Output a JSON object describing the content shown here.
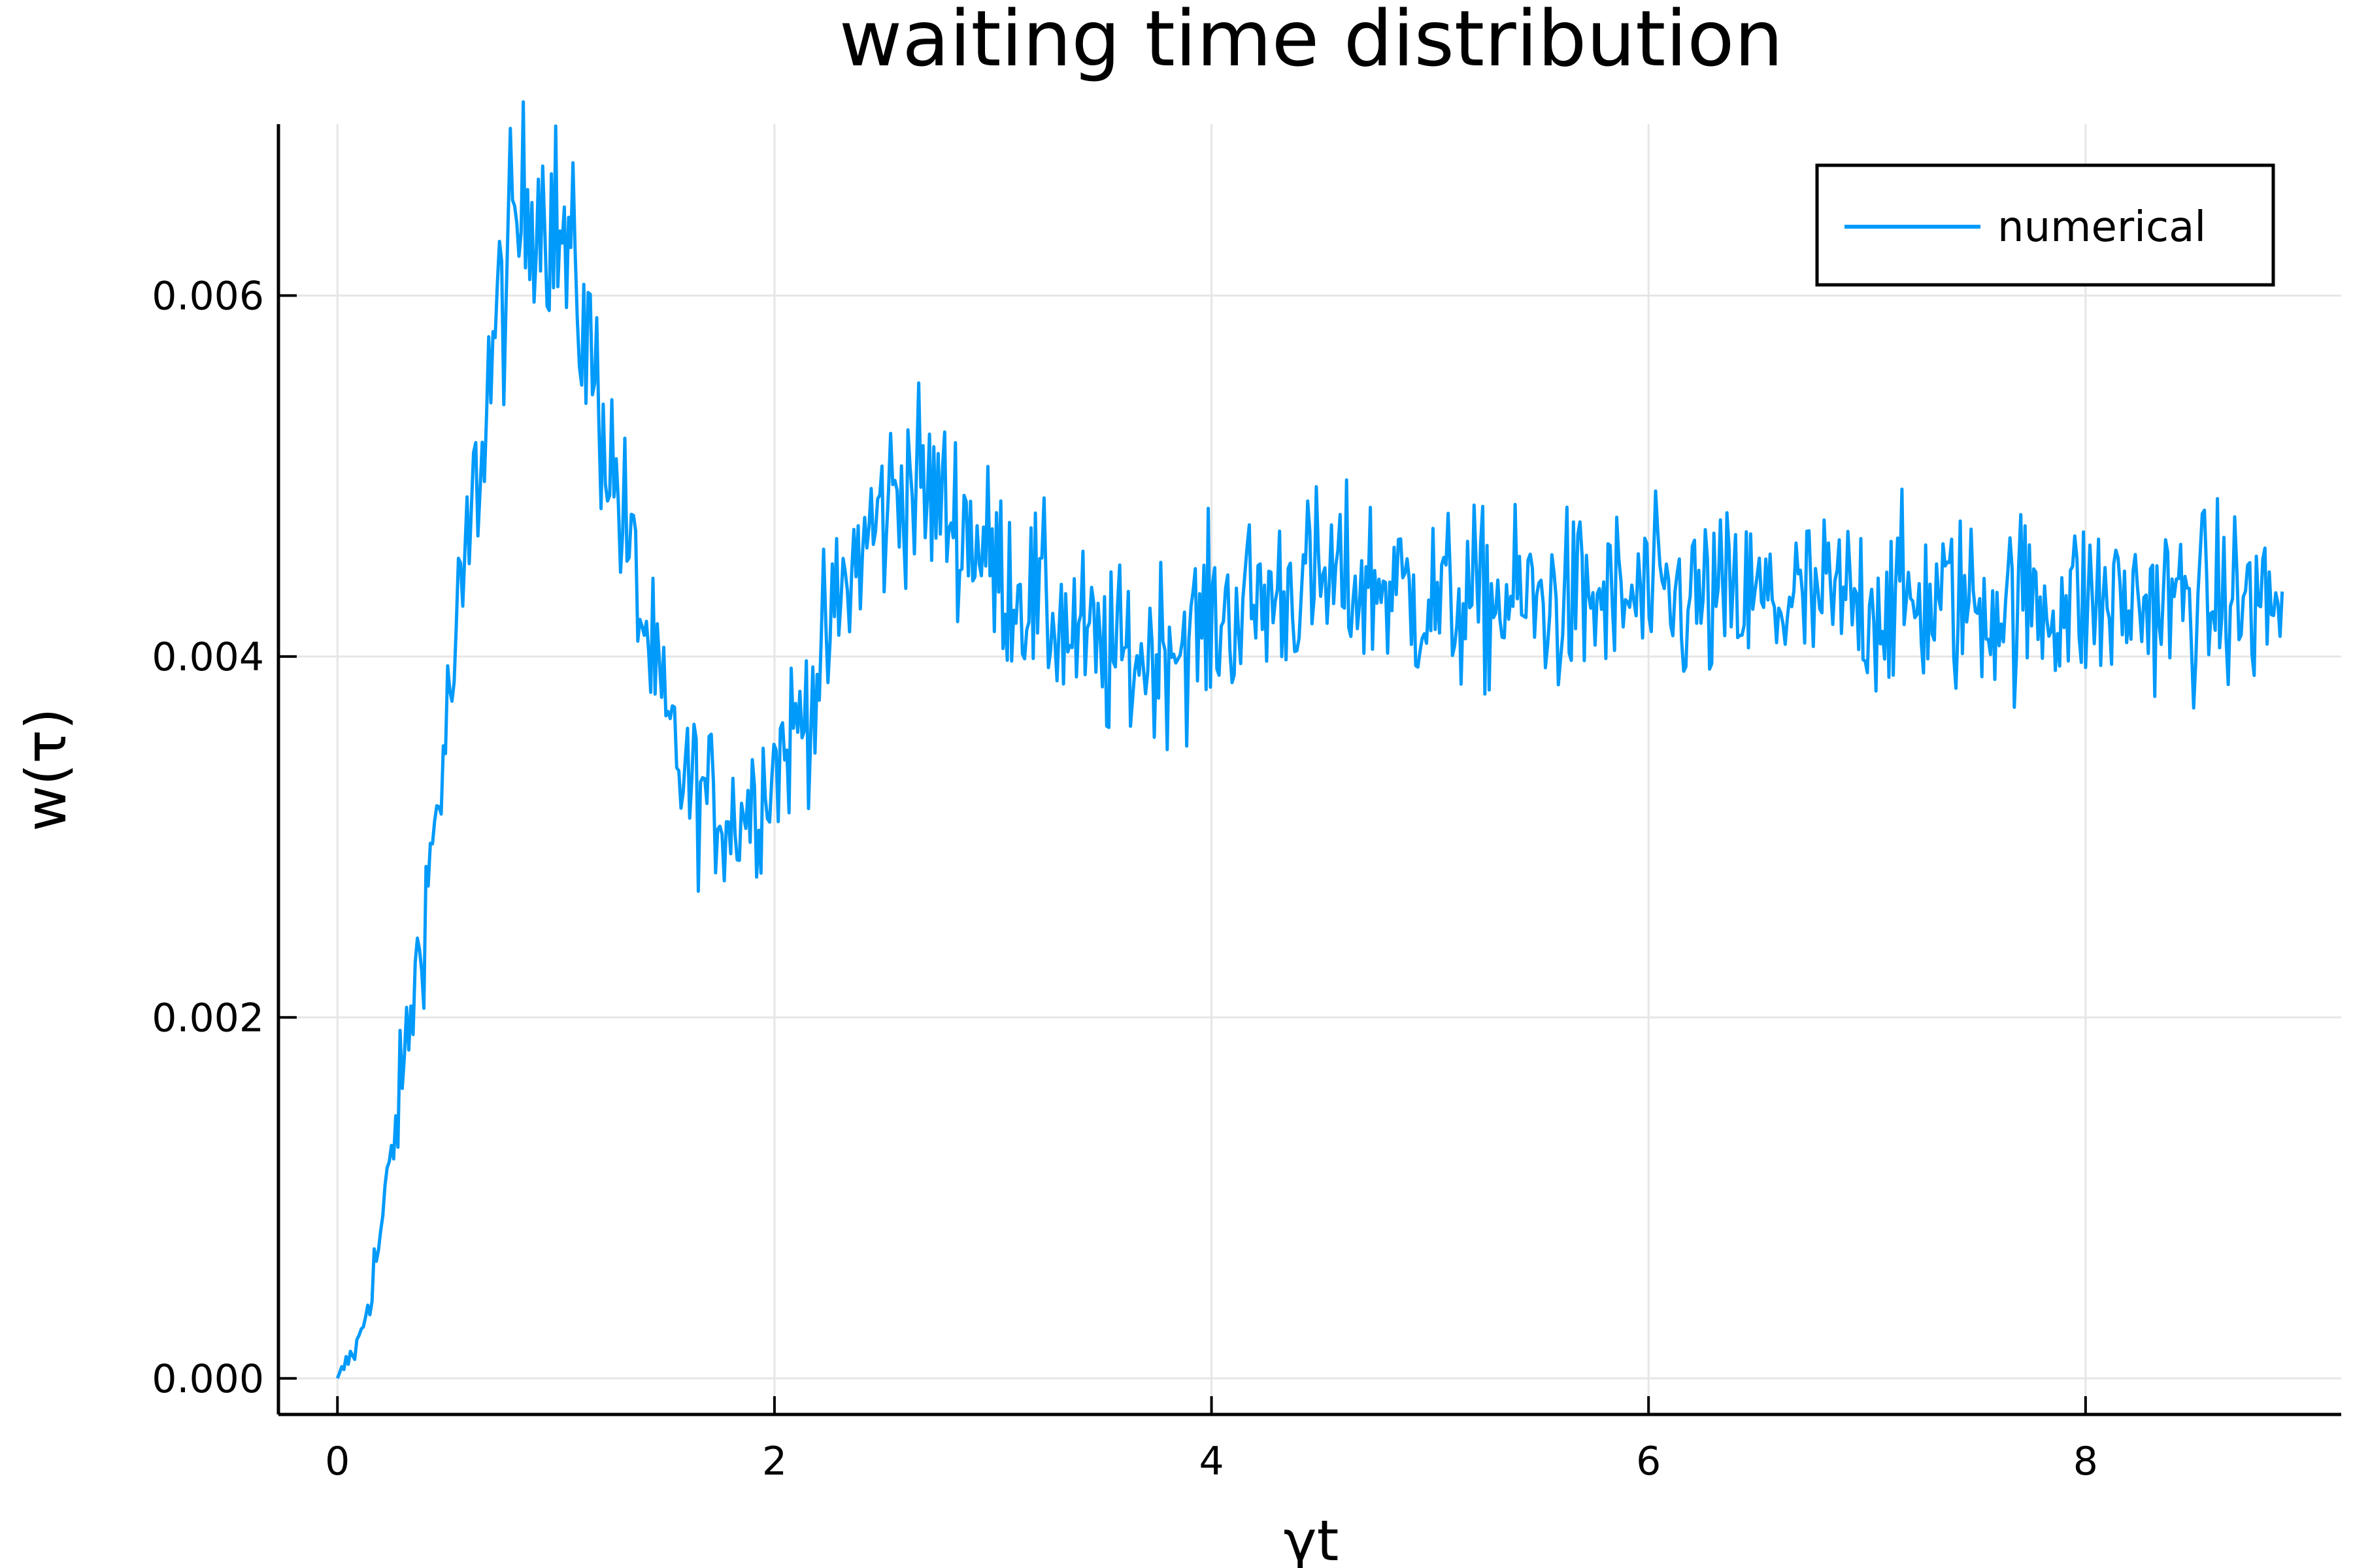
{
  "chart_data": {
    "type": "line",
    "title": "waiting time distribution",
    "xlabel": "γt",
    "ylabel": "w(τ)",
    "xlim": [
      -0.27,
      9.17
    ],
    "ylim": [
      -0.0002,
      0.00695
    ],
    "xticks": [
      0,
      2,
      4,
      6,
      8
    ],
    "xtick_labels": [
      "0",
      "2",
      "4",
      "6",
      "8"
    ],
    "yticks": [
      0,
      0.002,
      0.004,
      0.006
    ],
    "ytick_labels": [
      "0.000",
      "0.002",
      "0.004",
      "0.006"
    ],
    "grid": true,
    "legend_position": "top-right",
    "line_color": "#009AFA",
    "series": [
      {
        "name": "numerical",
        "color": "#009AFA",
        "x": [
          0,
          0.1,
          0.2,
          0.3,
          0.4,
          0.5,
          0.6,
          0.7,
          0.8,
          0.9,
          1.0,
          1.1,
          1.2,
          1.3,
          1.4,
          1.5,
          1.6,
          1.7,
          1.8,
          1.9,
          2.0,
          2.1,
          2.2,
          2.3,
          2.4,
          2.5,
          2.6,
          2.7,
          2.8,
          2.9,
          3.0,
          3.1,
          3.2,
          3.3,
          3.4,
          3.5,
          3.6,
          3.7,
          3.8,
          3.9,
          4.0,
          4.2,
          4.4,
          4.6,
          4.8,
          5.0,
          5.2,
          5.4,
          5.6,
          5.8,
          6.0,
          6.2,
          6.4,
          6.6,
          6.8,
          7.0,
          7.2,
          7.4,
          7.6,
          7.8,
          8.0,
          8.2,
          8.4,
          8.6,
          8.8,
          8.9
        ],
        "values": [
          0.0,
          0.0002,
          0.0008,
          0.0017,
          0.0026,
          0.0036,
          0.0046,
          0.0056,
          0.0063,
          0.0066,
          0.0064,
          0.006,
          0.0054,
          0.0048,
          0.0042,
          0.0036,
          0.0033,
          0.0032,
          0.0031,
          0.0032,
          0.0034,
          0.0036,
          0.0039,
          0.0043,
          0.0046,
          0.0048,
          0.005,
          0.0049,
          0.0048,
          0.0047,
          0.0045,
          0.0044,
          0.0043,
          0.0042,
          0.0041,
          0.004,
          0.004,
          0.004,
          0.0041,
          0.0041,
          0.0042,
          0.0043,
          0.0044,
          0.0044,
          0.0044,
          0.0043,
          0.0043,
          0.0043,
          0.0043,
          0.0043,
          0.0043,
          0.0043,
          0.0043,
          0.0043,
          0.0043,
          0.0043,
          0.0043,
          0.0043,
          0.0043,
          0.0043,
          0.0043,
          0.0043,
          0.0043,
          0.0043,
          0.0043,
          0.0043
        ]
      }
    ]
  }
}
